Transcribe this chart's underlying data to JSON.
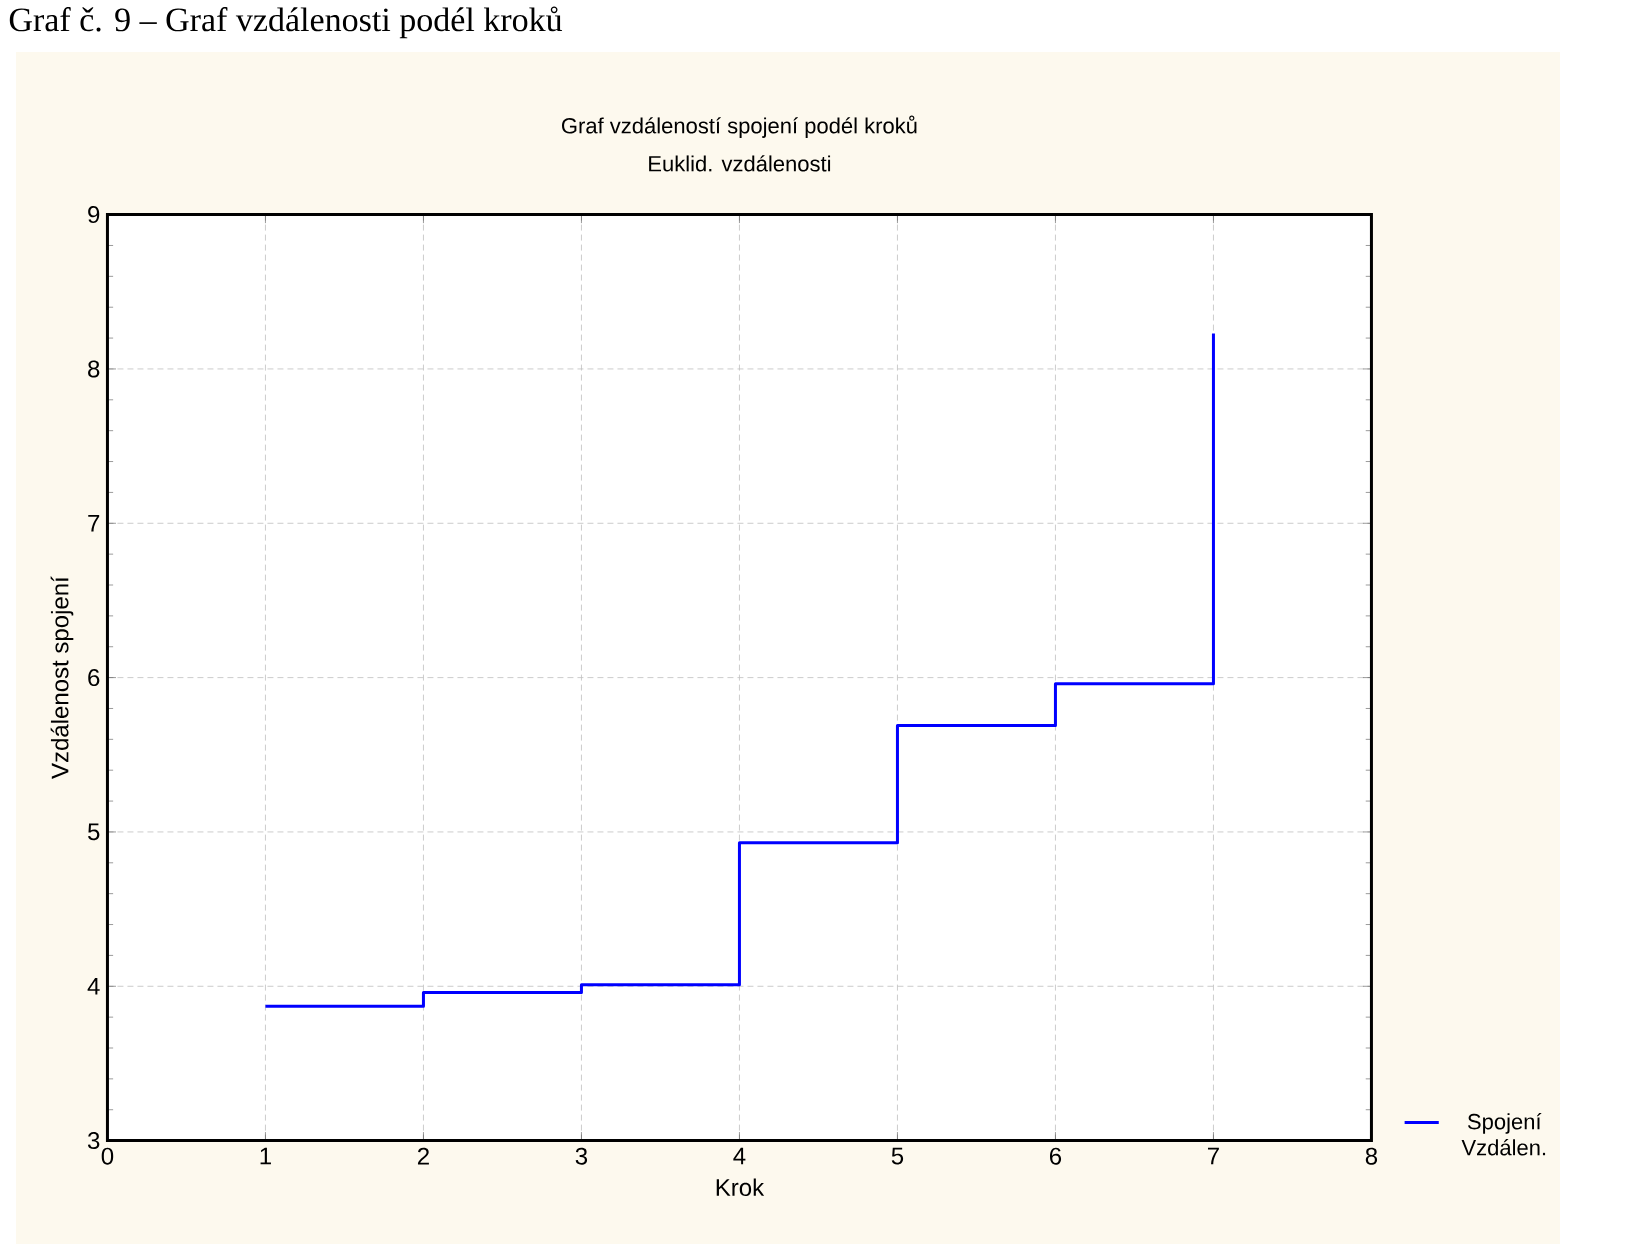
{
  "chart_data": {
    "type": "step",
    "title": "Graf vzdáleností spojení podél kroků",
    "subtitle": "Euklid. vzdálenosti",
    "xlabel": "Krok",
    "ylabel": "Vzdálenost spojení",
    "annotations": [
      "Graf č. 9 – Graf vzdálenosti podél kroků"
    ],
    "x": [
      1,
      2,
      3,
      4,
      5,
      6,
      7
    ],
    "series": [
      {
        "name": "Spojení Vzdálen.",
        "color": "#0000ff",
        "values": [
          3.87,
          3.96,
          4.01,
          4.93,
          5.69,
          5.96,
          8.23
        ]
      }
    ],
    "xlim": [
      0,
      8
    ],
    "ylim": [
      3,
      9
    ],
    "xticks": [
      0,
      1,
      2,
      3,
      4,
      5,
      6,
      7,
      8
    ],
    "yticks": [
      3,
      4,
      5,
      6,
      7,
      8,
      9
    ],
    "grid": true,
    "legend": "bottom right",
    "marker": "none",
    "line_style": "solid"
  }
}
